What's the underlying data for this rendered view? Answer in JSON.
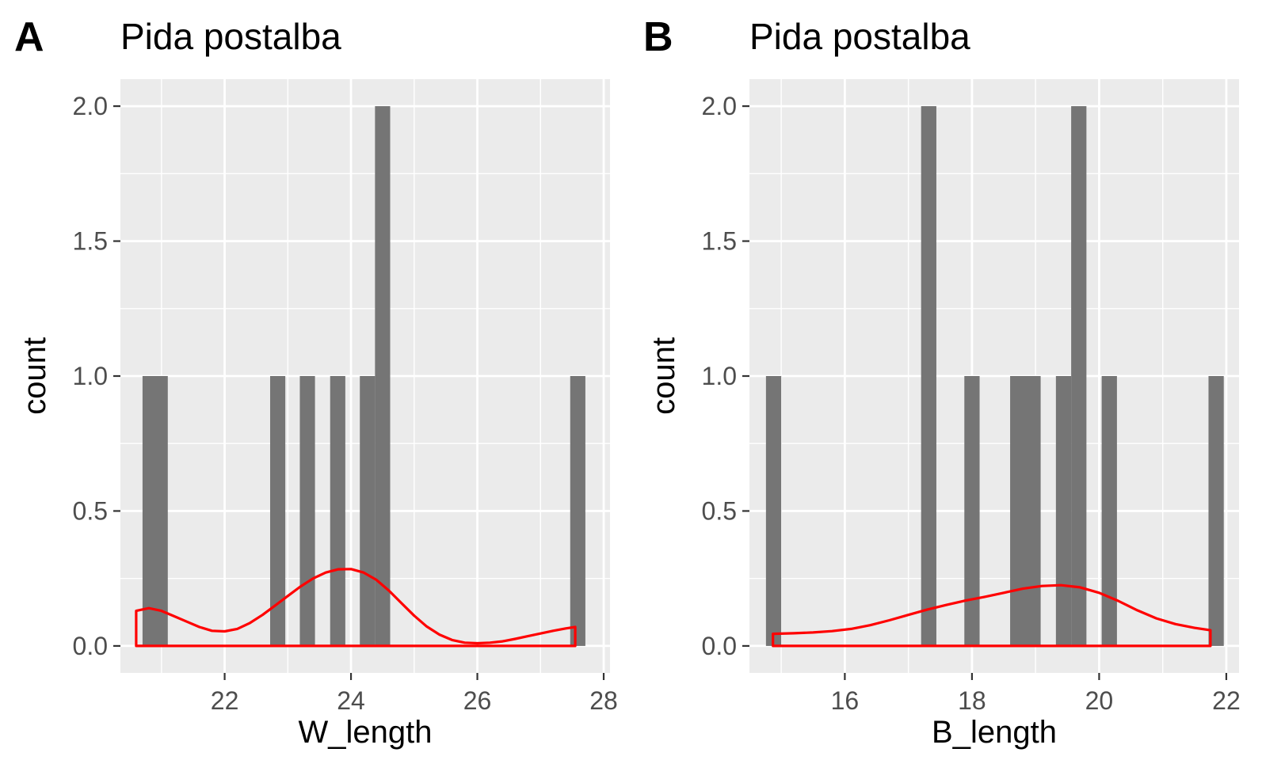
{
  "colors": {
    "panel": "#ebebeb",
    "grid": "#ffffff",
    "bar": "#757575",
    "density": "#ff0000"
  },
  "chart_data": [
    {
      "type": "bar",
      "tag": "A",
      "title": "Pida postalba",
      "xlabel": "W_length",
      "ylabel": "count",
      "xlim": [
        20.35,
        28.1
      ],
      "ylim": [
        -0.1,
        2.1
      ],
      "xticks": [
        22,
        24,
        26,
        28
      ],
      "xtick_labels": [
        "22",
        "24",
        "26",
        "28"
      ],
      "yticks": [
        0,
        0.5,
        1,
        1.5,
        2
      ],
      "ytick_labels": [
        "0.0",
        "0.5",
        "1.0",
        "1.5",
        "2.0"
      ],
      "grid": true,
      "bin_width": 0.24,
      "bins": [
        {
          "xmin": 20.7,
          "xmax": 21.1,
          "count": 1
        },
        {
          "xmin": 22.72,
          "xmax": 22.96,
          "count": 1
        },
        {
          "xmin": 23.19,
          "xmax": 23.43,
          "count": 1
        },
        {
          "xmin": 23.67,
          "xmax": 23.91,
          "count": 1
        },
        {
          "xmin": 24.14,
          "xmax": 24.38,
          "count": 1
        },
        {
          "xmin": 24.38,
          "xmax": 24.62,
          "count": 2
        },
        {
          "xmin": 27.47,
          "xmax": 27.71,
          "count": 1
        }
      ],
      "density": {
        "x": [
          20.6,
          20.8,
          21.0,
          21.2,
          21.4,
          21.6,
          21.8,
          22.0,
          22.2,
          22.4,
          22.6,
          22.8,
          23.0,
          23.2,
          23.4,
          23.6,
          23.8,
          24.0,
          24.2,
          24.4,
          24.6,
          24.8,
          25.0,
          25.2,
          25.4,
          25.6,
          25.8,
          26.0,
          26.2,
          26.4,
          26.6,
          26.8,
          27.0,
          27.2,
          27.4,
          27.55
        ],
        "y": [
          0.13,
          0.14,
          0.13,
          0.11,
          0.09,
          0.07,
          0.056,
          0.054,
          0.063,
          0.085,
          0.115,
          0.15,
          0.185,
          0.22,
          0.25,
          0.272,
          0.284,
          0.285,
          0.272,
          0.245,
          0.205,
          0.158,
          0.112,
          0.072,
          0.042,
          0.022,
          0.012,
          0.01,
          0.012,
          0.017,
          0.026,
          0.036,
          0.046,
          0.056,
          0.065,
          0.07
        ]
      }
    },
    {
      "type": "bar",
      "tag": "B",
      "title": "Pida postalba",
      "xlabel": "B_length",
      "ylabel": "count",
      "xlim": [
        14.5,
        22.2
      ],
      "ylim": [
        -0.1,
        2.1
      ],
      "xticks": [
        16,
        18,
        20,
        22
      ],
      "xtick_labels": [
        "16",
        "18",
        "20",
        "22"
      ],
      "yticks": [
        0,
        0.5,
        1,
        1.5,
        2
      ],
      "ytick_labels": [
        "0.0",
        "0.5",
        "1.0",
        "1.5",
        "2.0"
      ],
      "grid": true,
      "bin_width": 0.24,
      "bins": [
        {
          "xmin": 14.76,
          "xmax": 15.0,
          "count": 1
        },
        {
          "xmin": 17.2,
          "xmax": 17.44,
          "count": 2
        },
        {
          "xmin": 17.88,
          "xmax": 18.12,
          "count": 1
        },
        {
          "xmin": 18.6,
          "xmax": 19.08,
          "count": 1
        },
        {
          "xmin": 19.32,
          "xmax": 19.56,
          "count": 1
        },
        {
          "xmin": 19.56,
          "xmax": 19.8,
          "count": 2
        },
        {
          "xmin": 20.04,
          "xmax": 20.28,
          "count": 1
        },
        {
          "xmin": 21.72,
          "xmax": 21.96,
          "count": 1
        }
      ],
      "density": {
        "x": [
          14.87,
          15.2,
          15.5,
          15.8,
          16.1,
          16.4,
          16.7,
          17.0,
          17.3,
          17.6,
          17.9,
          18.2,
          18.5,
          18.8,
          19.1,
          19.4,
          19.7,
          20.0,
          20.3,
          20.6,
          20.9,
          21.2,
          21.5,
          21.75
        ],
        "y": [
          0.045,
          0.047,
          0.05,
          0.055,
          0.063,
          0.077,
          0.095,
          0.115,
          0.135,
          0.152,
          0.168,
          0.182,
          0.197,
          0.212,
          0.222,
          0.225,
          0.217,
          0.197,
          0.167,
          0.132,
          0.102,
          0.081,
          0.067,
          0.058
        ]
      }
    }
  ]
}
